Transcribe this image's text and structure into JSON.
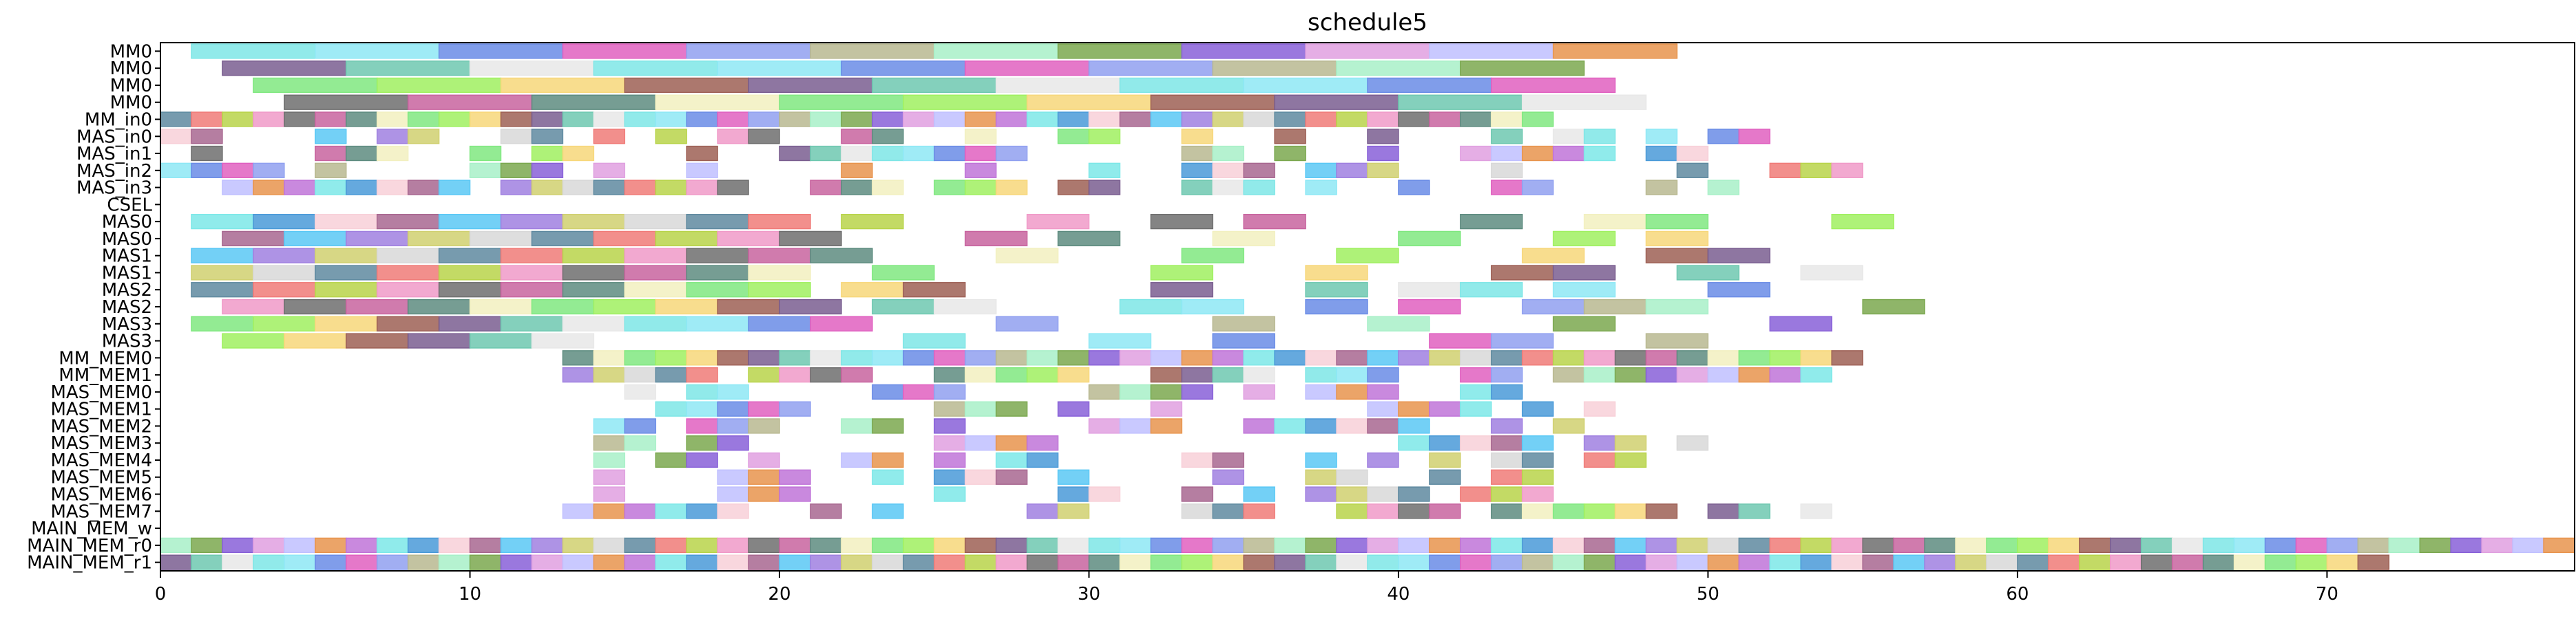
{
  "chart_data": {
    "type": "gantt",
    "title": "schedule5",
    "xlabel": "",
    "ylabel": "",
    "xlim": [
      0,
      78
    ],
    "xticks": [
      0,
      10,
      20,
      30,
      40,
      50,
      60,
      70
    ],
    "grid": false,
    "rows": [
      "MM0",
      "MM0",
      "MM0",
      "MM0",
      "MM_in0",
      "MAS_in0",
      "MAS_in1",
      "MAS_in2",
      "MAS_in3",
      "CSEL",
      "MAS0",
      "MAS0",
      "MAS1",
      "MAS1",
      "MAS2",
      "MAS2",
      "MAS3",
      "MAS3",
      "MM_MEM0",
      "MM_MEM1",
      "MAS_MEM0",
      "MAS_MEM1",
      "MAS_MEM2",
      "MAS_MEM3",
      "MAS_MEM4",
      "MAS_MEM5",
      "MAS_MEM6",
      "MAS_MEM7",
      "MAIN_MEM_w",
      "MAIN_MEM_r0",
      "MAIN_MEM_r1"
    ],
    "palette": [
      "#7ee6e6",
      "#f7d77a",
      "#c8649f",
      "#5f8aa0",
      "#a86790",
      "#e8944d",
      "#a8f0c8",
      "#8ee8f5",
      "#9e6055",
      "#5e8c80",
      "#f07b78",
      "#5ac8f5",
      "#c074d8",
      "#7ba84f",
      "#6a8ce6",
      "#7a5e90",
      "#f2f0c0",
      "#b8d44a",
      "#a080e0",
      "#7de8e8",
      "#8860d8",
      "#e060c0",
      "#6ec8b0",
      "#80e880",
      "#f09ac8",
      "#d0d070",
      "#4a9ad8",
      "#e0a0e0",
      "#90a0f0",
      "#e8e8e8",
      "#a0f060",
      "#6f6f6f",
      "#d8d8d8",
      "#f8d0d8",
      "#c0c0ff",
      "#b8b890"
    ],
    "series": [
      {
        "row": 0,
        "tasks": [
          [
            1,
            5
          ],
          [
            5,
            9
          ],
          [
            9,
            13
          ],
          [
            13,
            17
          ],
          [
            17,
            21
          ],
          [
            21,
            25
          ],
          [
            25,
            29
          ],
          [
            29,
            33
          ],
          [
            33,
            37
          ],
          [
            37,
            41
          ],
          [
            41,
            45
          ],
          [
            45,
            49
          ]
        ]
      },
      {
        "row": 1,
        "tasks": [
          [
            2,
            6
          ],
          [
            6,
            10
          ],
          [
            10,
            14
          ],
          [
            14,
            18
          ],
          [
            18,
            22
          ],
          [
            22,
            26
          ],
          [
            26,
            30
          ],
          [
            30,
            34
          ],
          [
            34,
            38
          ],
          [
            38,
            42
          ],
          [
            42,
            46
          ]
        ]
      },
      {
        "row": 2,
        "tasks": [
          [
            3,
            7
          ],
          [
            7,
            11
          ],
          [
            11,
            15
          ],
          [
            15,
            19
          ],
          [
            19,
            23
          ],
          [
            23,
            27
          ],
          [
            27,
            31
          ],
          [
            31,
            35
          ],
          [
            35,
            39
          ],
          [
            39,
            43
          ],
          [
            43,
            47
          ]
        ]
      },
      {
        "row": 3,
        "tasks": [
          [
            4,
            8
          ],
          [
            8,
            12
          ],
          [
            12,
            16
          ],
          [
            16,
            20
          ],
          [
            20,
            24
          ],
          [
            24,
            28
          ],
          [
            28,
            32
          ],
          [
            32,
            36
          ],
          [
            36,
            40
          ],
          [
            40,
            44
          ],
          [
            44,
            48
          ]
        ]
      },
      {
        "row": 4,
        "tasks": "seq:0:45:1"
      },
      {
        "row": 5,
        "tasks": "sparse:0:53"
      },
      {
        "row": 6,
        "tasks": "sparse:0:53"
      },
      {
        "row": 7,
        "tasks": "sparse:0:55"
      },
      {
        "row": 8,
        "tasks": "sparse:0:51"
      },
      {
        "row": 9,
        "tasks": []
      },
      {
        "row": 10,
        "tasks": [
          [
            1,
            3
          ],
          [
            3,
            5
          ],
          [
            5,
            7
          ],
          [
            7,
            9
          ],
          [
            9,
            11
          ],
          [
            11,
            13
          ],
          [
            13,
            15
          ],
          [
            15,
            17
          ],
          [
            17,
            19
          ],
          [
            19,
            21
          ],
          [
            22,
            24
          ],
          [
            28,
            30
          ],
          [
            32,
            34
          ],
          [
            35,
            37
          ],
          [
            42,
            44
          ],
          [
            46,
            48
          ],
          [
            48,
            50
          ],
          [
            54,
            56
          ]
        ]
      },
      {
        "row": 11,
        "tasks": [
          [
            2,
            4
          ],
          [
            4,
            6
          ],
          [
            6,
            8
          ],
          [
            8,
            10
          ],
          [
            10,
            12
          ],
          [
            12,
            14
          ],
          [
            14,
            16
          ],
          [
            16,
            18
          ],
          [
            18,
            20
          ],
          [
            20,
            22
          ],
          [
            26,
            28
          ],
          [
            29,
            31
          ],
          [
            34,
            36
          ],
          [
            40,
            42
          ],
          [
            45,
            47
          ],
          [
            48,
            50
          ]
        ]
      },
      {
        "row": 12,
        "tasks": [
          [
            1,
            3
          ],
          [
            3,
            5
          ],
          [
            5,
            7
          ],
          [
            7,
            9
          ],
          [
            9,
            11
          ],
          [
            11,
            13
          ],
          [
            13,
            15
          ],
          [
            15,
            17
          ],
          [
            17,
            19
          ],
          [
            19,
            21
          ],
          [
            21,
            23
          ],
          [
            27,
            29
          ],
          [
            33,
            35
          ],
          [
            38,
            40
          ],
          [
            44,
            46
          ],
          [
            48,
            50
          ],
          [
            50,
            52
          ]
        ]
      },
      {
        "row": 13,
        "tasks": [
          [
            1,
            3
          ],
          [
            3,
            5
          ],
          [
            5,
            7
          ],
          [
            7,
            9
          ],
          [
            9,
            11
          ],
          [
            11,
            13
          ],
          [
            13,
            15
          ],
          [
            15,
            17
          ],
          [
            17,
            19
          ],
          [
            19,
            21
          ],
          [
            23,
            25
          ],
          [
            32,
            34
          ],
          [
            37,
            39
          ],
          [
            43,
            45
          ],
          [
            45,
            47
          ],
          [
            49,
            51
          ],
          [
            53,
            55
          ]
        ]
      },
      {
        "row": 14,
        "tasks": [
          [
            1,
            3
          ],
          [
            3,
            5
          ],
          [
            5,
            7
          ],
          [
            7,
            9
          ],
          [
            9,
            11
          ],
          [
            11,
            13
          ],
          [
            13,
            15
          ],
          [
            15,
            17
          ],
          [
            17,
            19
          ],
          [
            19,
            21
          ],
          [
            22,
            24
          ],
          [
            24,
            26
          ],
          [
            32,
            34
          ],
          [
            37,
            39
          ],
          [
            40,
            42
          ],
          [
            42,
            44
          ],
          [
            45,
            47
          ],
          [
            50,
            52
          ]
        ]
      },
      {
        "row": 15,
        "tasks": [
          [
            2,
            4
          ],
          [
            4,
            6
          ],
          [
            6,
            8
          ],
          [
            8,
            10
          ],
          [
            10,
            12
          ],
          [
            12,
            14
          ],
          [
            14,
            16
          ],
          [
            16,
            18
          ],
          [
            18,
            20
          ],
          [
            20,
            22
          ],
          [
            23,
            25
          ],
          [
            25,
            27
          ],
          [
            31,
            33
          ],
          [
            33,
            35
          ],
          [
            37,
            39
          ],
          [
            40,
            42
          ],
          [
            44,
            46
          ],
          [
            46,
            48
          ],
          [
            48,
            50
          ],
          [
            55,
            57
          ]
        ]
      },
      {
        "row": 16,
        "tasks": [
          [
            1,
            3
          ],
          [
            3,
            5
          ],
          [
            5,
            7
          ],
          [
            7,
            9
          ],
          [
            9,
            11
          ],
          [
            11,
            13
          ],
          [
            13,
            15
          ],
          [
            15,
            17
          ],
          [
            17,
            19
          ],
          [
            19,
            21
          ],
          [
            21,
            23
          ],
          [
            27,
            29
          ],
          [
            34,
            36
          ],
          [
            39,
            41
          ],
          [
            45,
            47
          ],
          [
            52,
            54
          ]
        ]
      },
      {
        "row": 17,
        "tasks": [
          [
            2,
            4
          ],
          [
            4,
            6
          ],
          [
            6,
            8
          ],
          [
            8,
            10
          ],
          [
            10,
            12
          ],
          [
            12,
            14
          ],
          [
            24,
            26
          ],
          [
            30,
            32
          ],
          [
            34,
            36
          ],
          [
            41,
            43
          ],
          [
            43,
            45
          ],
          [
            48,
            50
          ]
        ]
      },
      {
        "row": 18,
        "tasks": "seq:13:55:1"
      },
      {
        "row": 19,
        "tasks": "mix:13:54"
      },
      {
        "row": 20,
        "tasks": "sparse:15:44"
      },
      {
        "row": 21,
        "tasks": "sparse:14:48"
      },
      {
        "row": 22,
        "tasks": "sparse:13:48"
      },
      {
        "row": 23,
        "tasks": "sparse:14:51"
      },
      {
        "row": 24,
        "tasks": "sparse:14:48"
      },
      {
        "row": 25,
        "tasks": "sparse:14:46"
      },
      {
        "row": 26,
        "tasks": "sparse:14:48"
      },
      {
        "row": 27,
        "tasks": "sparse:13:55"
      },
      {
        "row": 28,
        "tasks": []
      },
      {
        "row": 29,
        "tasks": "seq:0:78:1"
      },
      {
        "row": 30,
        "tasks": "seq:0:72:1"
      }
    ]
  }
}
